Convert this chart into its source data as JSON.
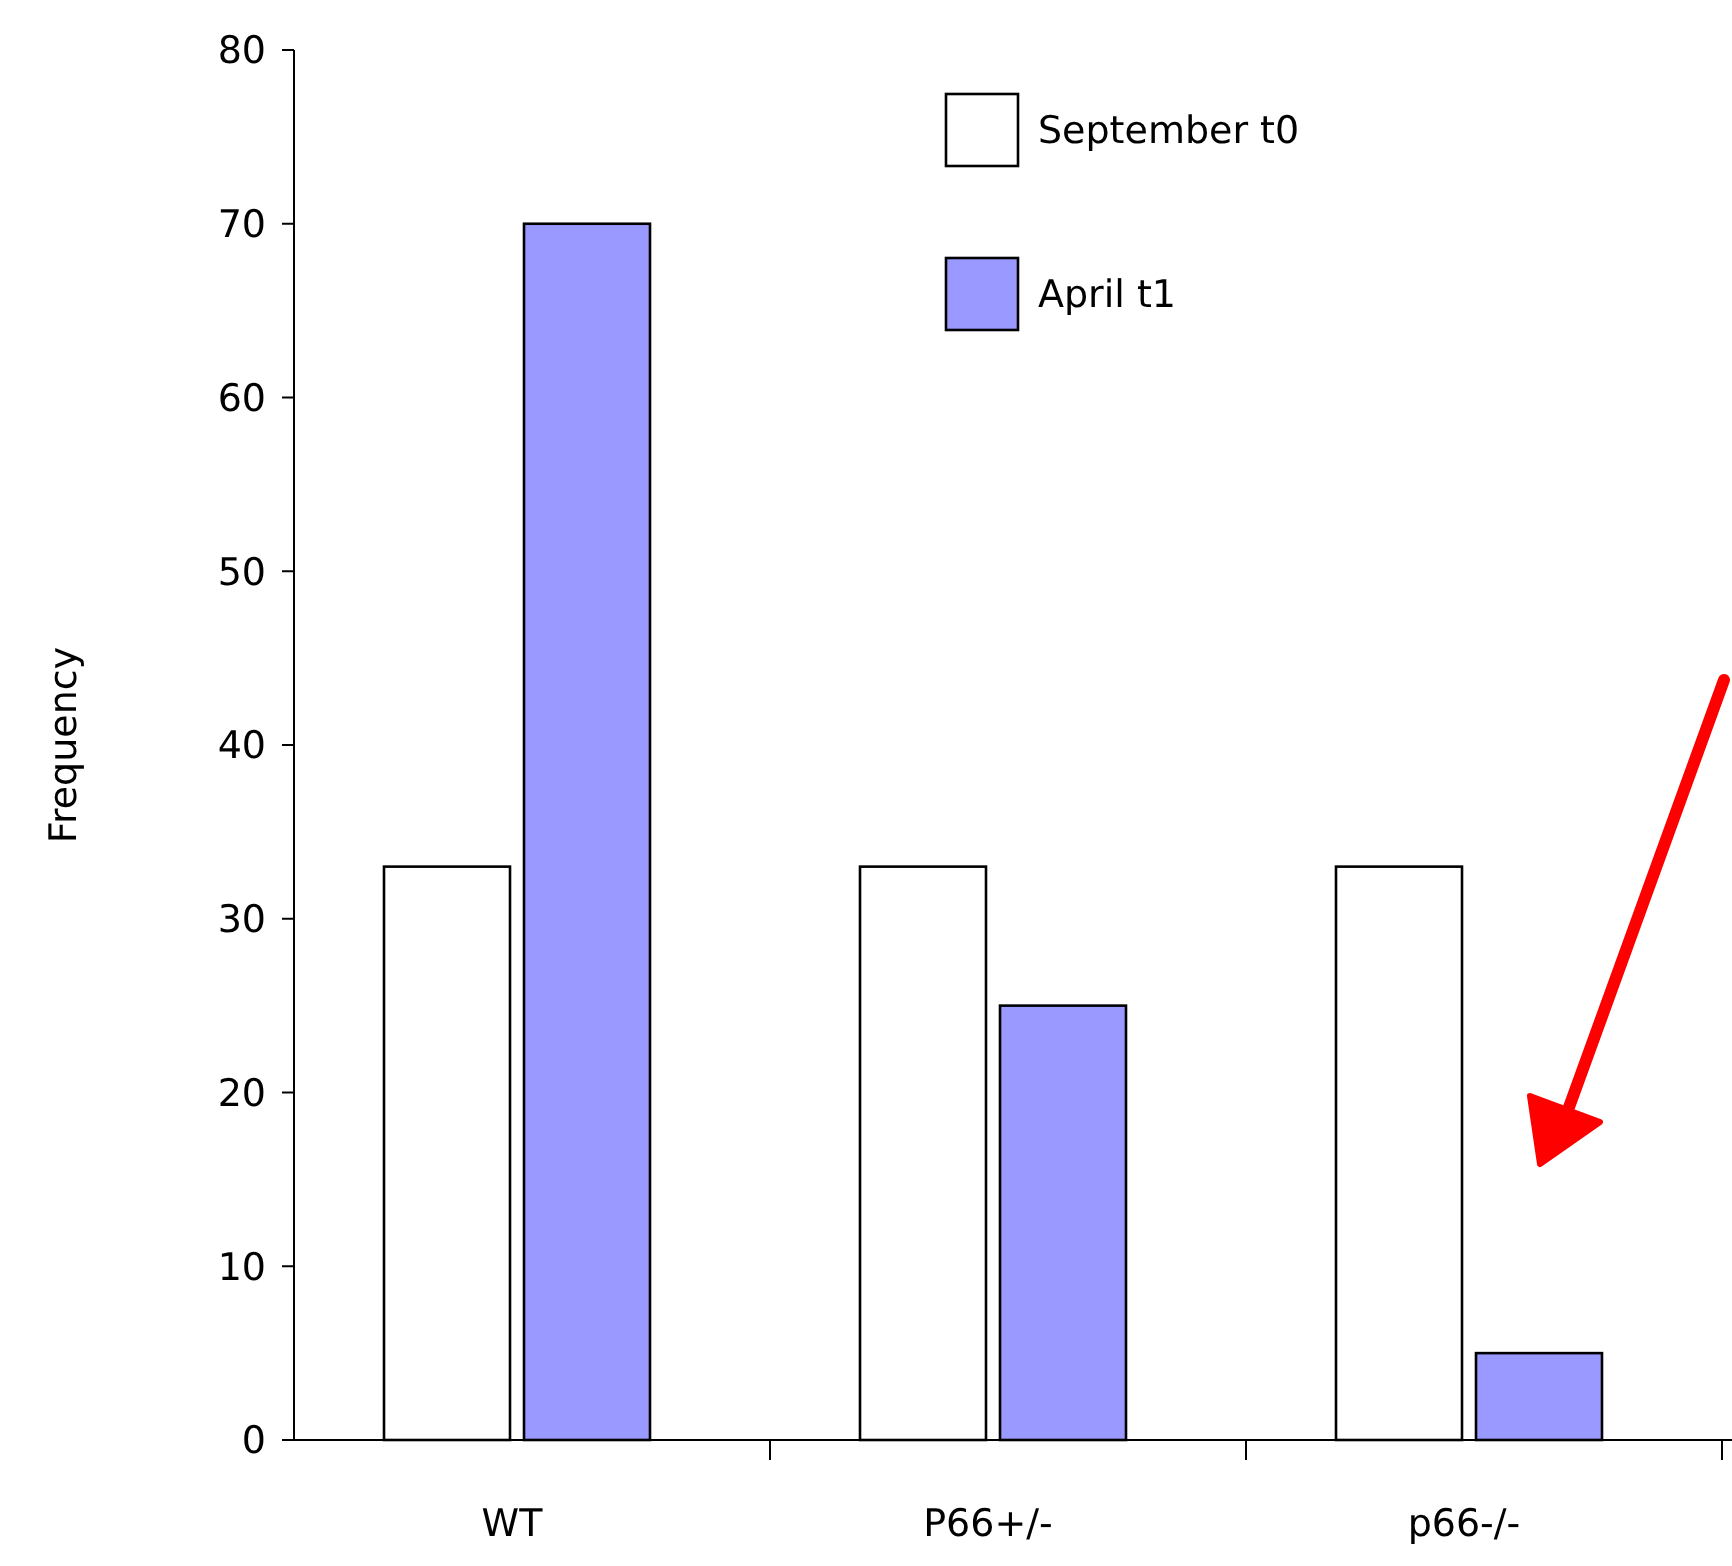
{
  "chart_data": {
    "type": "bar",
    "ylabel": "Frequency",
    "categories": [
      "WT",
      "P66+/-",
      "p66-/-"
    ],
    "series": [
      {
        "name": "September t0",
        "color": "#ffffff",
        "values": [
          33,
          33,
          33
        ]
      },
      {
        "name": "April t1",
        "color": "#9999ff",
        "values": [
          70,
          25,
          5
        ]
      }
    ],
    "ylim": [
      0,
      80
    ],
    "yticks": [
      0,
      10,
      20,
      30,
      40,
      50,
      60,
      70,
      80
    ],
    "grid": false,
    "legend": "top"
  }
}
